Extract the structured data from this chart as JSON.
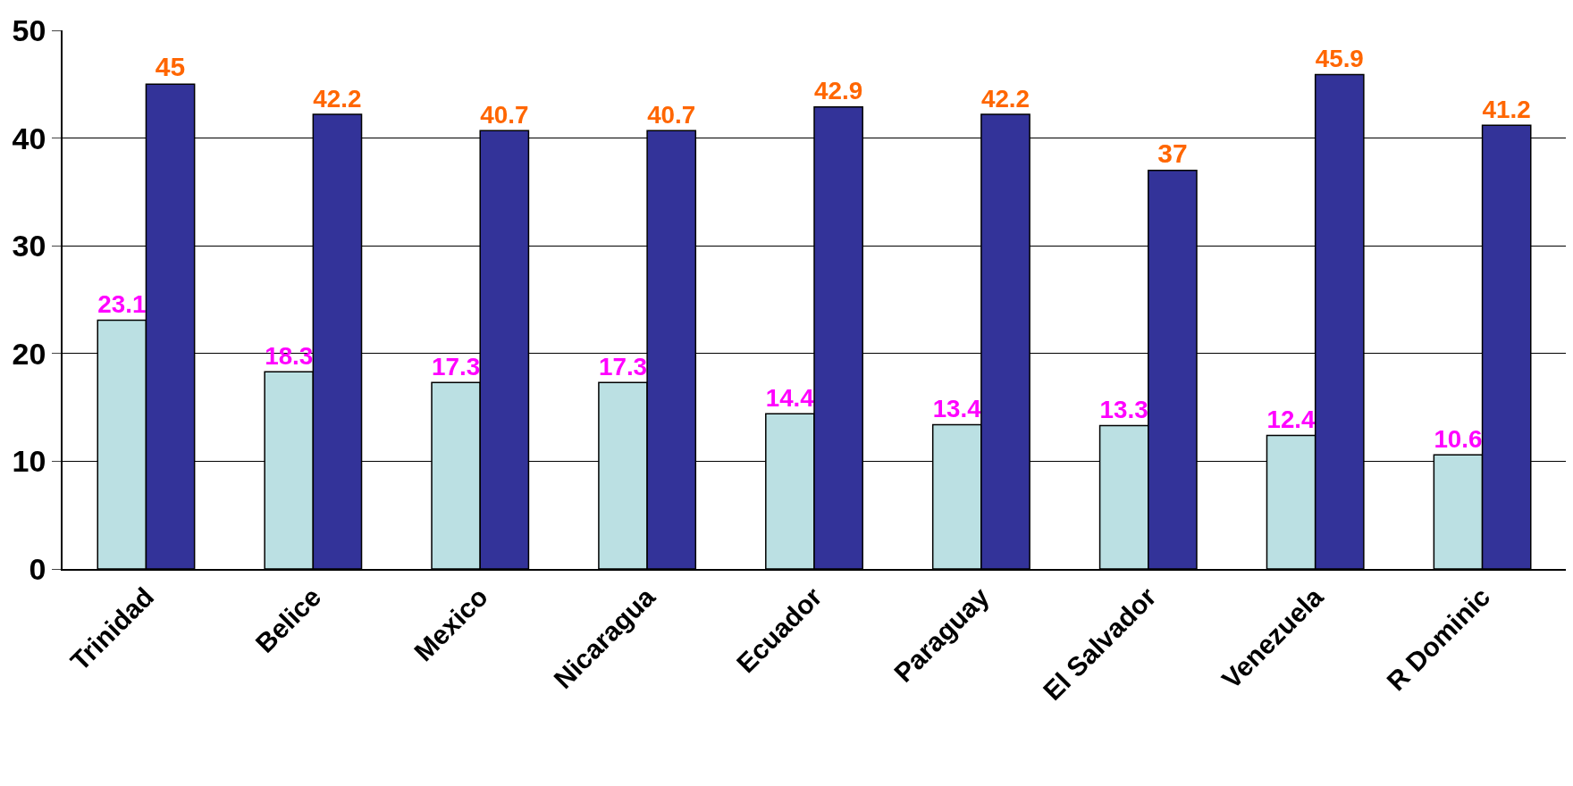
{
  "chart_data": {
    "type": "bar",
    "categories": [
      "Trinidad",
      "Belice",
      "Mexico",
      "Nicaragua",
      "Ecuador",
      "Paraguay",
      "El Salvador",
      "Venezuela",
      "R Dominic"
    ],
    "series": [
      {
        "color": "#bbe0e3",
        "values": [
          23.1,
          18.3,
          17.3,
          17.3,
          14.4,
          13.4,
          13.3,
          12.4,
          10.6
        ]
      },
      {
        "color": "#333399",
        "values": [
          45,
          42.2,
          40.7,
          40.7,
          42.9,
          42.2,
          37,
          45.9,
          41.2
        ]
      }
    ],
    "ylim": [
      0,
      50
    ],
    "yticks": [
      0,
      10,
      20,
      30,
      40,
      50
    ],
    "grid": "y",
    "legend": false,
    "data_labels": true
  }
}
